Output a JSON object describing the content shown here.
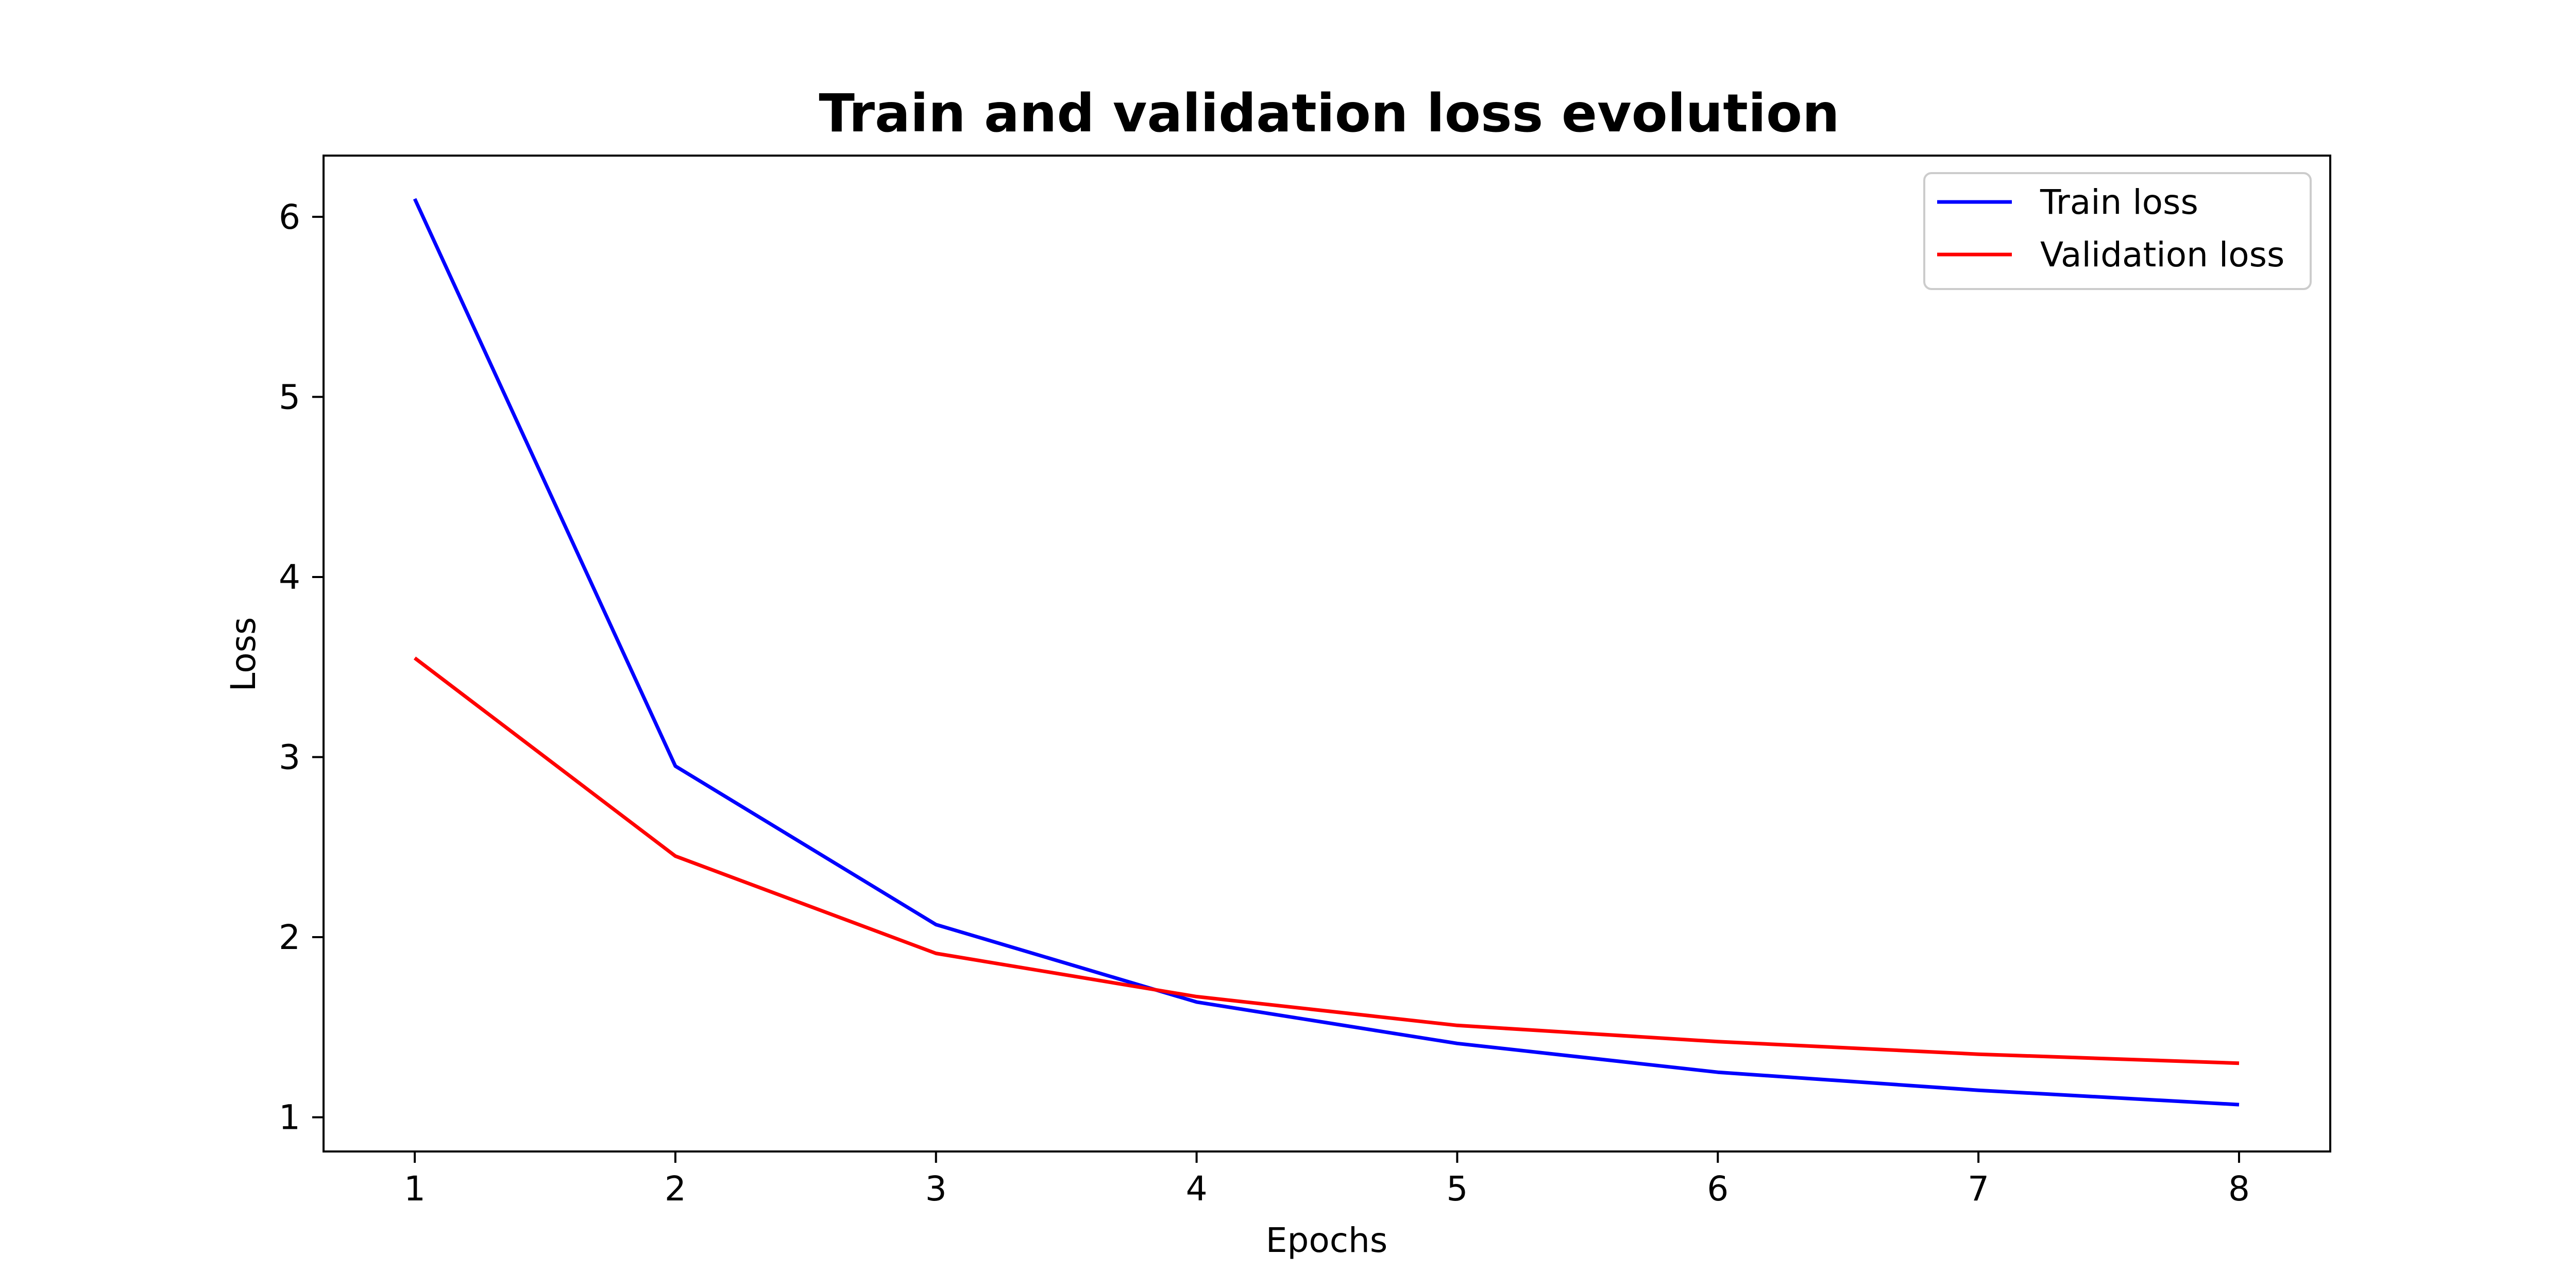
{
  "chart_data": {
    "type": "line",
    "title": "Train and validation loss evolution",
    "xlabel": "Epochs",
    "ylabel": "Loss",
    "x": [
      1,
      2,
      3,
      4,
      5,
      6,
      7,
      8
    ],
    "xticks": [
      1,
      2,
      3,
      4,
      5,
      6,
      7,
      8
    ],
    "yticks": [
      1,
      2,
      3,
      4,
      5,
      6
    ],
    "xlim": [
      0.65,
      8.35
    ],
    "ylim": [
      0.81,
      6.34
    ],
    "grid": false,
    "legend_position": "top-right",
    "series": [
      {
        "name": "Train loss",
        "color": "#0000ff",
        "values": [
          6.1,
          2.95,
          2.07,
          1.64,
          1.41,
          1.25,
          1.15,
          1.07
        ]
      },
      {
        "name": "Validation loss",
        "color": "#ff0000",
        "values": [
          3.55,
          2.45,
          1.91,
          1.67,
          1.51,
          1.42,
          1.35,
          1.3
        ]
      }
    ]
  }
}
